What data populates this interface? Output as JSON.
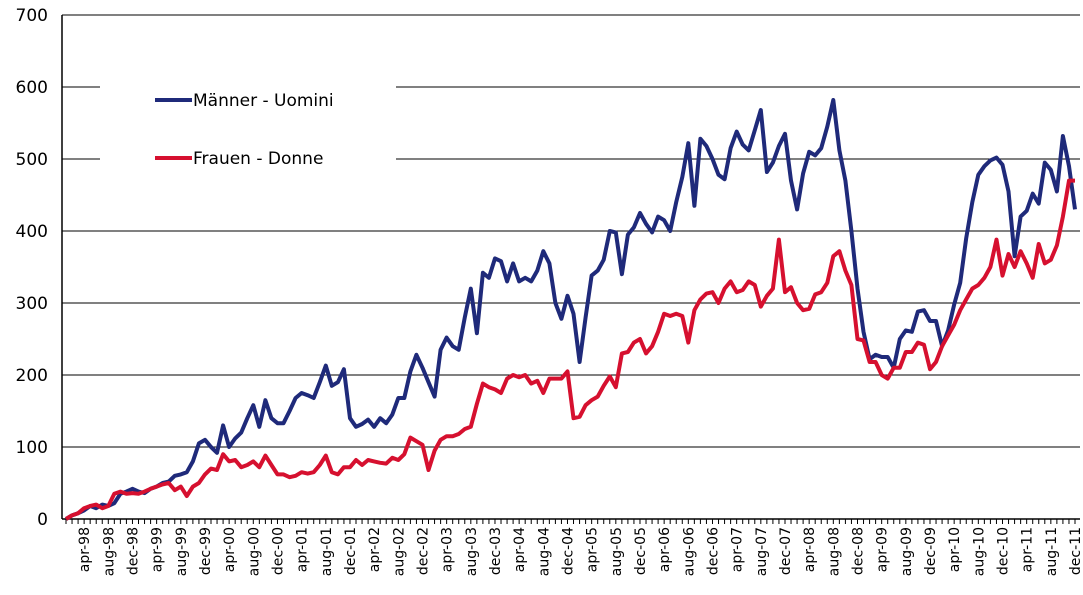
{
  "chart_data": {
    "type": "line",
    "categories": [
      null,
      null,
      null,
      "apr-98",
      null,
      null,
      null,
      "aug-98",
      null,
      null,
      null,
      "dec-98",
      null,
      null,
      null,
      "apr-99",
      null,
      null,
      null,
      "aug-99",
      null,
      null,
      null,
      "dec-99",
      null,
      null,
      null,
      "apr-00",
      null,
      null,
      null,
      "aug-00",
      null,
      null,
      null,
      "dec-00",
      null,
      null,
      null,
      "apr-01",
      null,
      null,
      null,
      "aug-01",
      null,
      null,
      null,
      "dec-01",
      null,
      null,
      null,
      "apr-02",
      null,
      null,
      null,
      "aug-02",
      null,
      null,
      null,
      "dec-02",
      null,
      null,
      null,
      "apr-03",
      null,
      null,
      null,
      "aug-03",
      null,
      null,
      null,
      "dec-03",
      null,
      null,
      null,
      "apr-04",
      null,
      null,
      null,
      "aug-04",
      null,
      null,
      null,
      "dec-04",
      null,
      null,
      null,
      "apr-05",
      null,
      null,
      null,
      "aug-05",
      null,
      null,
      null,
      "dec-05",
      null,
      null,
      null,
      "apr-06",
      null,
      null,
      null,
      "aug-06",
      null,
      null,
      null,
      "dec-06",
      null,
      null,
      null,
      "apr-07",
      null,
      null,
      null,
      "aug-07",
      null,
      null,
      null,
      "dec-07",
      null,
      null,
      null,
      "apr-08",
      null,
      null,
      null,
      "aug-08",
      null,
      null,
      null,
      "dec-08",
      null,
      null,
      null,
      "apr-09",
      null,
      null,
      null,
      "aug-09",
      null,
      null,
      null,
      "dec-09",
      null,
      null,
      null,
      "apr-10",
      null,
      null,
      null,
      "aug-10",
      null,
      null,
      null,
      "dec-10",
      null,
      null,
      null,
      "apr-11",
      null,
      null,
      null,
      "aug-11",
      null,
      null,
      null,
      "dec-11"
    ],
    "series": [
      {
        "name": "Männer - Uomini",
        "color": "#1f2a7a",
        "values": [
          0,
          5,
          8,
          12,
          18,
          15,
          20,
          18,
          22,
          35,
          38,
          42,
          38,
          36,
          42,
          45,
          50,
          52,
          60,
          62,
          65,
          80,
          105,
          110,
          100,
          92,
          130,
          100,
          112,
          120,
          140,
          158,
          128,
          165,
          140,
          133,
          133,
          150,
          168,
          175,
          172,
          168,
          190,
          213,
          185,
          190,
          208,
          140,
          128,
          132,
          138,
          128,
          140,
          133,
          145,
          168,
          168,
          205,
          228,
          210,
          190,
          170,
          235,
          252,
          240,
          235,
          280,
          320,
          258,
          342,
          335,
          362,
          358,
          330,
          355,
          330,
          335,
          330,
          345,
          372,
          355,
          300,
          278,
          310,
          285,
          218,
          280,
          338,
          345,
          360,
          400,
          398,
          340,
          395,
          405,
          425,
          410,
          398,
          420,
          415,
          400,
          440,
          475,
          522,
          435,
          528,
          518,
          500,
          478,
          472,
          515,
          538,
          520,
          512,
          540,
          568,
          482,
          495,
          518,
          535,
          470,
          430,
          480,
          510,
          505,
          515,
          545,
          582,
          512,
          470,
          400,
          320,
          260,
          222,
          228,
          225,
          225,
          210,
          250,
          262,
          260,
          288,
          290,
          275,
          275,
          240,
          262,
          298,
          328,
          390,
          440,
          478,
          490,
          498,
          502,
          492,
          455,
          365,
          420,
          428,
          452,
          438,
          495,
          485,
          455,
          532,
          490,
          430
        ]
      },
      {
        "name": "Frauen - Donne",
        "color": "#d6102f",
        "values": [
          0,
          5,
          8,
          15,
          18,
          20,
          15,
          18,
          35,
          38,
          35,
          36,
          35,
          38,
          42,
          45,
          48,
          50,
          40,
          45,
          32,
          45,
          50,
          62,
          70,
          68,
          90,
          80,
          82,
          72,
          75,
          80,
          72,
          88,
          75,
          62,
          62,
          58,
          60,
          65,
          63,
          65,
          75,
          88,
          65,
          62,
          72,
          72,
          82,
          75,
          82,
          80,
          78,
          77,
          85,
          82,
          90,
          113,
          108,
          103,
          68,
          95,
          110,
          115,
          115,
          118,
          125,
          128,
          160,
          188,
          183,
          180,
          175,
          195,
          200,
          197,
          200,
          188,
          192,
          175,
          195,
          195,
          195,
          205,
          140,
          142,
          158,
          165,
          170,
          185,
          198,
          183,
          230,
          232,
          245,
          250,
          230,
          240,
          260,
          285,
          282,
          285,
          282,
          245,
          290,
          305,
          313,
          315,
          300,
          320,
          330,
          315,
          318,
          330,
          325,
          295,
          310,
          320,
          388,
          315,
          322,
          300,
          290,
          292,
          312,
          315,
          328,
          365,
          372,
          345,
          325,
          250,
          248,
          218,
          218,
          200,
          195,
          210,
          210,
          232,
          232,
          245,
          242,
          208,
          218,
          240,
          255,
          270,
          290,
          305,
          320,
          325,
          335,
          350,
          388,
          338,
          368,
          350,
          372,
          355,
          335,
          382,
          355,
          360,
          380,
          420,
          470,
          470
        ]
      }
    ],
    "ylim": [
      0,
      700
    ],
    "yticks": [
      0,
      100,
      200,
      300,
      400,
      500,
      600,
      700
    ],
    "grid": true,
    "legend": "upper left"
  }
}
